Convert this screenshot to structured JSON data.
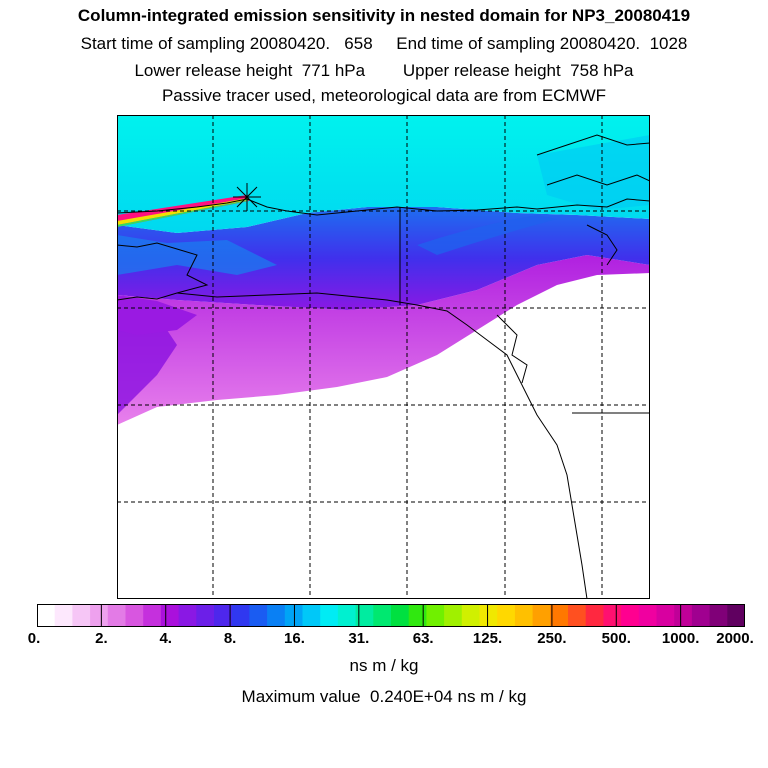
{
  "header": {
    "title": "Column-integrated emission sensitivity in nested domain for NP3_20080419",
    "start_label": "Start time of sampling",
    "start_value": "20080420.   658",
    "end_label": "End time of sampling",
    "end_value": "20080420.  1028",
    "lower_label": "Lower release height",
    "lower_value": "771 hPa",
    "upper_label": "Upper release height",
    "upper_value": "758 hPa",
    "tracer_note": "Passive tracer used, meteorological data are from ECMWF"
  },
  "colorbar": {
    "tick_labels": [
      "0.",
      "2.",
      "4.",
      "8.",
      "16.",
      "31.",
      "63.",
      "125.",
      "250.",
      "500.",
      "1000.",
      "2000."
    ],
    "unit": "ns m / kg",
    "colors": [
      "#ffffff",
      "#fde8fd",
      "#f6c6f6",
      "#eea1ee",
      "#e37be6",
      "#d856e0",
      "#c530dd",
      "#aa10dc",
      "#8a18e4",
      "#6c1fe8",
      "#4e27ec",
      "#3038f0",
      "#1a5cf2",
      "#0a80f4",
      "#00a4f6",
      "#00c8f8",
      "#00ecf4",
      "#00f0d0",
      "#00eca0",
      "#00e870",
      "#00e040",
      "#30e810",
      "#70f000",
      "#a0f000",
      "#d0f000",
      "#f0e800",
      "#ffd800",
      "#ffc000",
      "#ffa000",
      "#ff7800",
      "#ff5020",
      "#ff2840",
      "#ff1070",
      "#ff0090",
      "#f000a0",
      "#d800a0",
      "#c00098",
      "#a00090",
      "#800078",
      "#600060"
    ]
  },
  "footer": {
    "max_label": "Maximum value",
    "max_value": "0.240E+04",
    "max_unit": "ns m / kg"
  }
}
